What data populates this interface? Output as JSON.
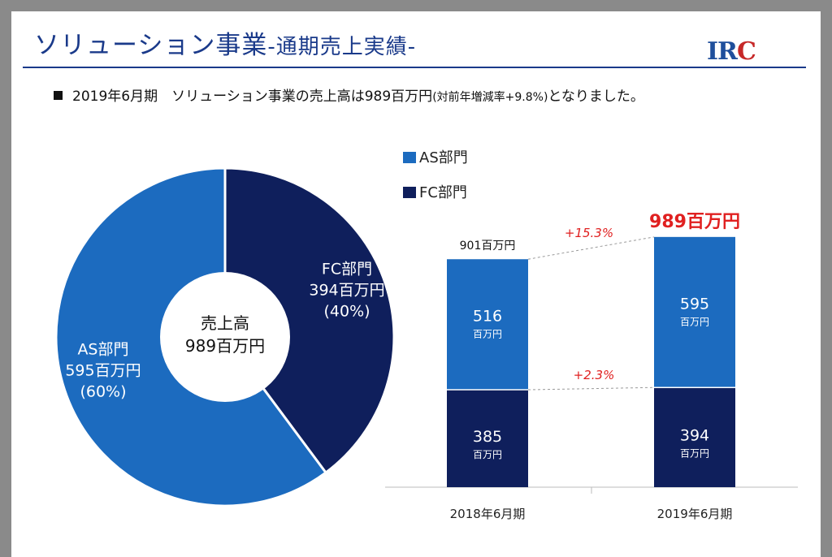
{
  "slide": {
    "title": "ソリューション事業",
    "title_sub": "-通期売上実績-",
    "logo_left": "IR",
    "logo_right": "C",
    "headline_main": "2019年6月期　ソリューション事業の売上高は989百万円",
    "headline_paren": "(対前年増減率+9.8%)",
    "headline_tail": "となりました。"
  },
  "colors": {
    "as": "#1c6bbf",
    "fc": "#0f1f5c",
    "accent": "#e02020",
    "title": "#1a3a8a"
  },
  "chart_data": [
    {
      "type": "pie",
      "variant": "donut",
      "center_label": [
        "売上高",
        "989百万円"
      ],
      "slices": [
        {
          "name": "FC部門",
          "value": 394,
          "share_label": "(40%)",
          "amount_label": "394百万円"
        },
        {
          "name": "AS部門",
          "value": 595,
          "share_label": "(60%)",
          "amount_label": "595百万円"
        }
      ]
    },
    {
      "type": "bar",
      "stacked": true,
      "categories": [
        "2018年6月期",
        "2019年6月期"
      ],
      "series": [
        {
          "name": "FC部門",
          "values": [
            385,
            394
          ]
        },
        {
          "name": "AS部門",
          "values": [
            516,
            595
          ]
        }
      ],
      "unit_label": "百万円",
      "totals": [
        "901百万円",
        "989百万円"
      ],
      "growth": {
        "as": "+15.3%",
        "fc": "+2.3%"
      },
      "legend": [
        "AS部門",
        "FC部門"
      ],
      "legend_position": "top-left"
    }
  ]
}
